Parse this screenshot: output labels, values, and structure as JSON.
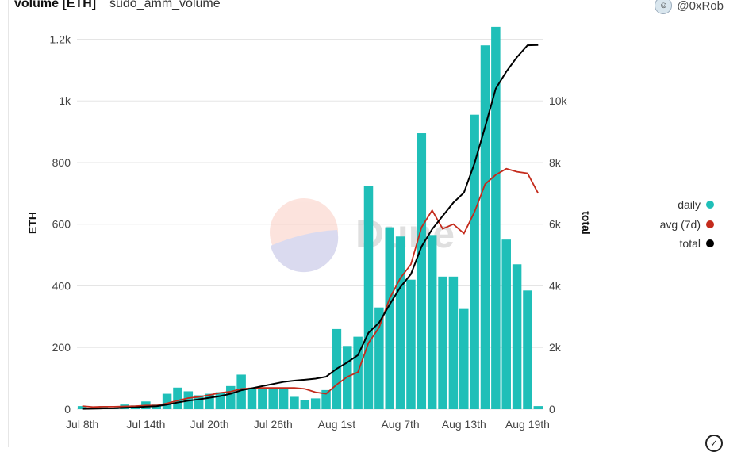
{
  "header": {
    "title": "volume [ETH]",
    "subtitle": "sudo_amm_volume",
    "author": "@0xRob"
  },
  "watermark": "Dune",
  "colors": {
    "daily": "#1fbfb8",
    "avg": "#c42b1c",
    "total": "#000000",
    "grid": "#e5e5e5"
  },
  "icons": {
    "avatar": "avatar-icon",
    "status": "check-circle-icon"
  },
  "chart_data": {
    "type": "bar",
    "title": "volume [ETH]",
    "subtitle": "sudo_amm_volume",
    "ylabel": "ETH",
    "y2label": "total",
    "ylim": [
      0,
      1250
    ],
    "y2lim": [
      0,
      12500
    ],
    "yticks": [
      0,
      200,
      400,
      600,
      800,
      1000,
      1200
    ],
    "ytick_labels": [
      "0",
      "200",
      "400",
      "600",
      "800",
      "1k",
      "1.2k"
    ],
    "y2ticks": [
      0,
      2000,
      4000,
      6000,
      8000,
      10000
    ],
    "y2tick_labels": [
      "0",
      "2k",
      "4k",
      "6k",
      "8k",
      "10k"
    ],
    "xtick_labels": [
      "Jul 8th",
      "Jul 14th",
      "Jul 20th",
      "Jul 26th",
      "Aug 1st",
      "Aug 7th",
      "Aug 13th",
      "Aug 19th"
    ],
    "xtick_index": [
      0,
      6,
      12,
      18,
      24,
      30,
      36,
      42
    ],
    "legend_position": "right",
    "grid": true,
    "categories": [
      "Jul 8",
      "Jul 9",
      "Jul 10",
      "Jul 11",
      "Jul 12",
      "Jul 13",
      "Jul 14",
      "Jul 15",
      "Jul 16",
      "Jul 17",
      "Jul 18",
      "Jul 19",
      "Jul 20",
      "Jul 21",
      "Jul 22",
      "Jul 23",
      "Jul 24",
      "Jul 25",
      "Jul 26",
      "Jul 27",
      "Jul 28",
      "Jul 29",
      "Jul 30",
      "Jul 31",
      "Aug 1",
      "Aug 2",
      "Aug 3",
      "Aug 4",
      "Aug 5",
      "Aug 6",
      "Aug 7",
      "Aug 8",
      "Aug 9",
      "Aug 10",
      "Aug 11",
      "Aug 12",
      "Aug 13",
      "Aug 14",
      "Aug 15",
      "Aug 16",
      "Aug 17",
      "Aug 18",
      "Aug 19",
      "Aug 20"
    ],
    "series": [
      {
        "name": "daily",
        "kind": "bar",
        "axis": "left",
        "values": [
          10,
          5,
          10,
          5,
          15,
          12,
          25,
          15,
          50,
          70,
          58,
          45,
          50,
          55,
          75,
          112,
          68,
          70,
          68,
          68,
          40,
          30,
          35,
          62,
          260,
          205,
          235,
          725,
          330,
          590,
          560,
          420,
          895,
          565,
          430,
          430,
          325,
          955,
          1180,
          1240,
          550,
          470,
          385,
          10
        ]
      },
      {
        "name": "avg (7d)",
        "kind": "line",
        "axis": "left",
        "values": [
          10,
          7,
          8,
          8,
          9,
          10,
          12,
          12,
          19,
          28,
          36,
          40,
          46,
          53,
          57,
          66,
          68,
          69,
          69,
          69,
          69,
          66,
          55,
          50,
          80,
          105,
          120,
          215,
          265,
          360,
          425,
          470,
          590,
          645,
          585,
          600,
          570,
          640,
          730,
          760,
          780,
          770,
          765,
          700
        ]
      },
      {
        "name": "total",
        "kind": "line",
        "axis": "right",
        "values": [
          10,
          15,
          25,
          30,
          45,
          57,
          82,
          97,
          147,
          217,
          275,
          320,
          370,
          425,
          500,
          612,
          680,
          750,
          818,
          886,
          926,
          956,
          991,
          1053,
          1313,
          1518,
          1753,
          2478,
          2808,
          3398,
          3958,
          4378,
          5273,
          5838,
          6268,
          6698,
          7023,
          7978,
          9158,
          10398,
          10948,
          11418,
          11803,
          11813
        ]
      }
    ]
  }
}
